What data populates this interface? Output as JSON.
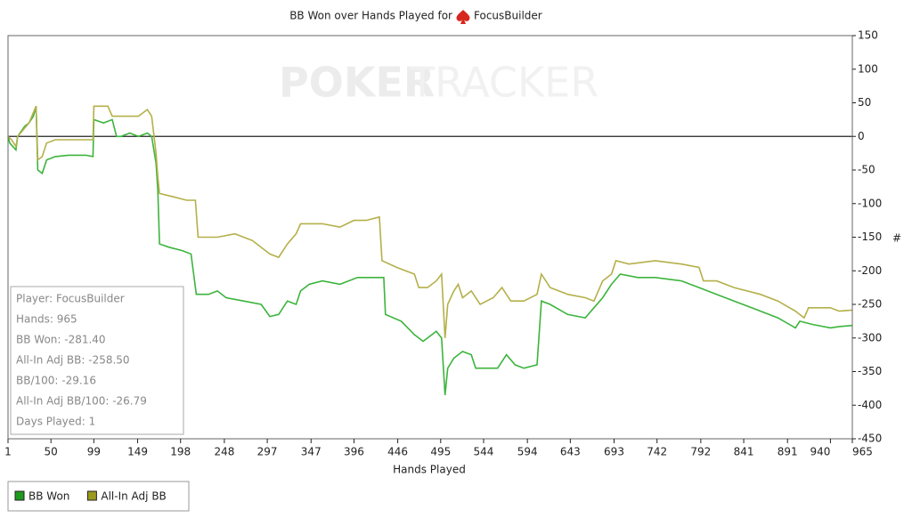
{
  "chart_data": {
    "type": "line",
    "title": "BB Won over Hands Played for",
    "title_player": "FocusBuilder",
    "watermark": [
      "POKER",
      "TRACKER"
    ],
    "xlabel": "Hands Played",
    "ylabel": "#",
    "xlim": [
      1,
      965
    ],
    "xticks": [
      1,
      50,
      99,
      149,
      198,
      248,
      297,
      347,
      396,
      446,
      495,
      544,
      594,
      643,
      693,
      742,
      792,
      841,
      891,
      940,
      965
    ],
    "ylim": [
      -450,
      150
    ],
    "yticks": [
      150,
      100,
      50,
      0,
      -50,
      -100,
      -150,
      -200,
      -250,
      -300,
      -350,
      -400,
      -450
    ],
    "series": [
      {
        "name": "BB Won",
        "color": "#3cb43c",
        "legend_color": "#1e9a1e",
        "x": [
          1,
          3,
          10,
          12,
          20,
          25,
          30,
          33,
          35,
          40,
          45,
          55,
          70,
          90,
          98,
          99,
          110,
          120,
          125,
          130,
          140,
          150,
          160,
          165,
          170,
          172,
          174,
          185,
          200,
          210,
          216,
          230,
          240,
          250,
          270,
          290,
          300,
          310,
          320,
          330,
          335,
          345,
          360,
          380,
          400,
          415,
          430,
          432,
          450,
          465,
          475,
          490,
          496,
          500,
          503,
          510,
          520,
          530,
          535,
          560,
          570,
          580,
          590,
          605,
          610,
          620,
          640,
          660,
          670,
          680,
          690,
          700,
          720,
          740,
          770,
          790,
          810,
          830,
          850,
          880,
          900,
          905,
          920,
          940,
          950,
          965
        ],
        "values": [
          0,
          -10,
          -20,
          0,
          15,
          20,
          30,
          45,
          -50,
          -55,
          -35,
          -30,
          -28,
          -28,
          -30,
          25,
          20,
          25,
          0,
          0,
          5,
          0,
          5,
          0,
          -40,
          -80,
          -160,
          -165,
          -170,
          -175,
          -235,
          -235,
          -230,
          -240,
          -245,
          -250,
          -268,
          -265,
          -245,
          -250,
          -230,
          -220,
          -215,
          -220,
          -210,
          -210,
          -210,
          -265,
          -275,
          -295,
          -305,
          -290,
          -300,
          -385,
          -345,
          -330,
          -320,
          -325,
          -345,
          -345,
          -325,
          -340,
          -345,
          -340,
          -245,
          -250,
          -265,
          -270,
          -255,
          -240,
          -220,
          -205,
          -210,
          -210,
          -215,
          -225,
          -235,
          -245,
          -255,
          -270,
          -285,
          -275,
          -280,
          -285,
          -283,
          -281.4
        ]
      },
      {
        "name": "All-In Adj BB",
        "color": "#b4b04a",
        "legend_color": "#9c9a1e",
        "x": [
          1,
          5,
          10,
          12,
          25,
          33,
          35,
          40,
          45,
          55,
          90,
          98,
          99,
          115,
          120,
          130,
          150,
          160,
          165,
          170,
          172,
          174,
          190,
          205,
          215,
          218,
          240,
          260,
          280,
          300,
          310,
          320,
          330,
          335,
          360,
          380,
          396,
          410,
          425,
          428,
          445,
          465,
          470,
          480,
          490,
          496,
          500,
          503,
          510,
          515,
          520,
          530,
          540,
          555,
          565,
          575,
          590,
          605,
          610,
          620,
          640,
          660,
          670,
          680,
          690,
          695,
          710,
          740,
          770,
          790,
          795,
          810,
          830,
          860,
          880,
          900,
          910,
          915,
          940,
          950,
          965
        ],
        "values": [
          0,
          -5,
          -15,
          0,
          20,
          45,
          -35,
          -30,
          -10,
          -5,
          -5,
          -5,
          45,
          45,
          30,
          30,
          30,
          40,
          30,
          -25,
          -60,
          -85,
          -90,
          -95,
          -95,
          -150,
          -150,
          -145,
          -155,
          -175,
          -180,
          -160,
          -145,
          -130,
          -130,
          -135,
          -125,
          -125,
          -120,
          -185,
          -195,
          -205,
          -225,
          -225,
          -215,
          -205,
          -300,
          -250,
          -230,
          -220,
          -240,
          -230,
          -250,
          -240,
          -225,
          -245,
          -245,
          -235,
          -205,
          -225,
          -235,
          -240,
          -245,
          -215,
          -205,
          -185,
          -190,
          -185,
          -190,
          -195,
          -215,
          -215,
          -225,
          -235,
          -245,
          -260,
          -270,
          -255,
          -255,
          -260,
          -258.5
        ]
      }
    ],
    "stats": [
      "Player: FocusBuilder",
      "Hands: 965",
      "BB Won: -281.40",
      "All-In Adj BB: -258.50",
      "BB/100: -29.16",
      "All-In Adj BB/100: -26.79",
      "Days Played: 1"
    ]
  }
}
